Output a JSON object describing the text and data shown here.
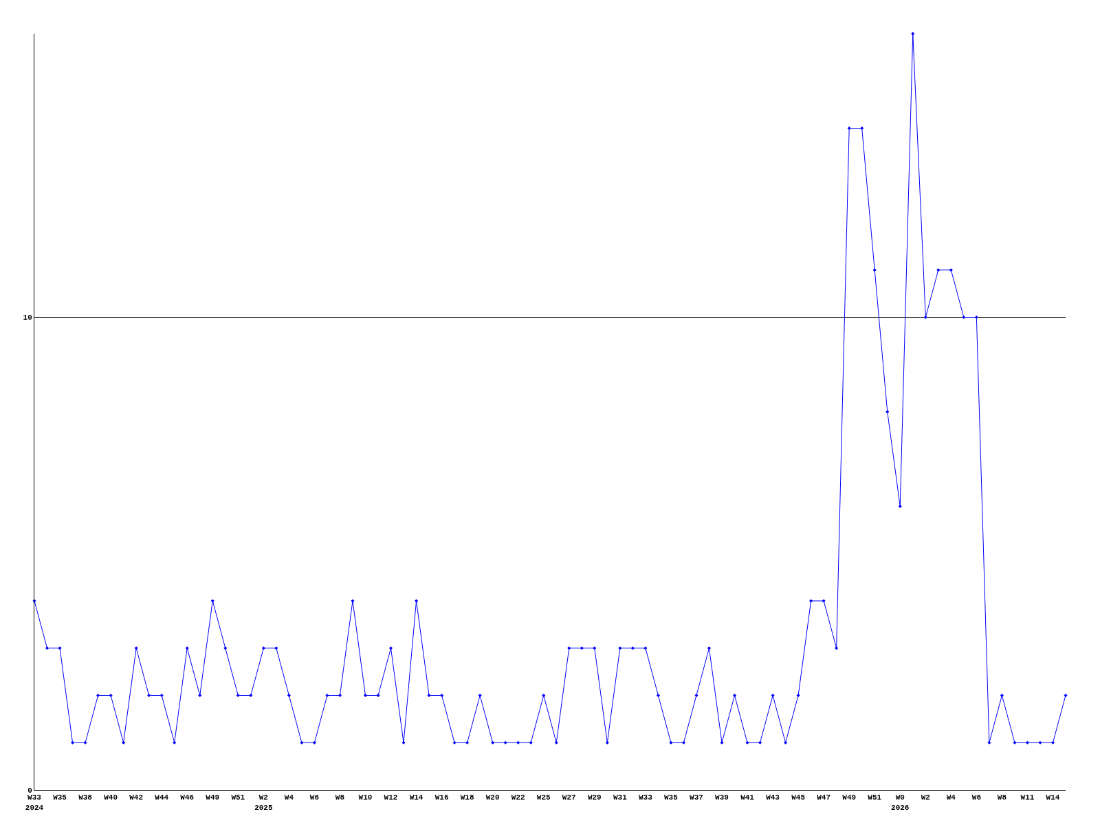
{
  "chart_data": {
    "type": "line",
    "categories": [
      "W33\n2024",
      null,
      "W35",
      null,
      "W38",
      null,
      "W40",
      null,
      "W42",
      null,
      "W44",
      null,
      "W46",
      null,
      "W49",
      null,
      "W51",
      null,
      "W2\n2025",
      null,
      "W4",
      null,
      "W6",
      null,
      "W8",
      null,
      "W10",
      null,
      "W12",
      null,
      "W14",
      null,
      "W16",
      null,
      "W18",
      null,
      "W20",
      null,
      "W22",
      null,
      "W25",
      null,
      "W27",
      null,
      "W29",
      null,
      "W31",
      null,
      "W33",
      null,
      "W35",
      null,
      "W37",
      null,
      "W39",
      null,
      "W41",
      null,
      "W43",
      null,
      "W45",
      null,
      "W47",
      null,
      "W49",
      null,
      "W51",
      null,
      "W0\n2026",
      null,
      "W2",
      null,
      "W4",
      null,
      "W6",
      null,
      "W8",
      null,
      "W11",
      null,
      "W14",
      null
    ],
    "series": [
      {
        "color": "#0000ff",
        "values": [
          4,
          3,
          3,
          1,
          1,
          2,
          2,
          1,
          3,
          2,
          2,
          1,
          3,
          2,
          4,
          3,
          2,
          2,
          3,
          3,
          2,
          1,
          1,
          2,
          2,
          4,
          2,
          2,
          3,
          1,
          4,
          2,
          2,
          1,
          1,
          2,
          1,
          1,
          1,
          1,
          2,
          1,
          3,
          3,
          3,
          1,
          3,
          3,
          3,
          2,
          1,
          1,
          2,
          3,
          1,
          2,
          1,
          1,
          2,
          1,
          2,
          4,
          4,
          3,
          14,
          14,
          11,
          8,
          6,
          16,
          10,
          11,
          11,
          10,
          10,
          1,
          2,
          1,
          1,
          1,
          1,
          2
        ]
      }
    ],
    "ylim": [
      0,
      16
    ],
    "yticks": [
      0,
      10
    ],
    "grid": "y",
    "marker": "diamond",
    "line_style": "solid",
    "legend": false
  }
}
